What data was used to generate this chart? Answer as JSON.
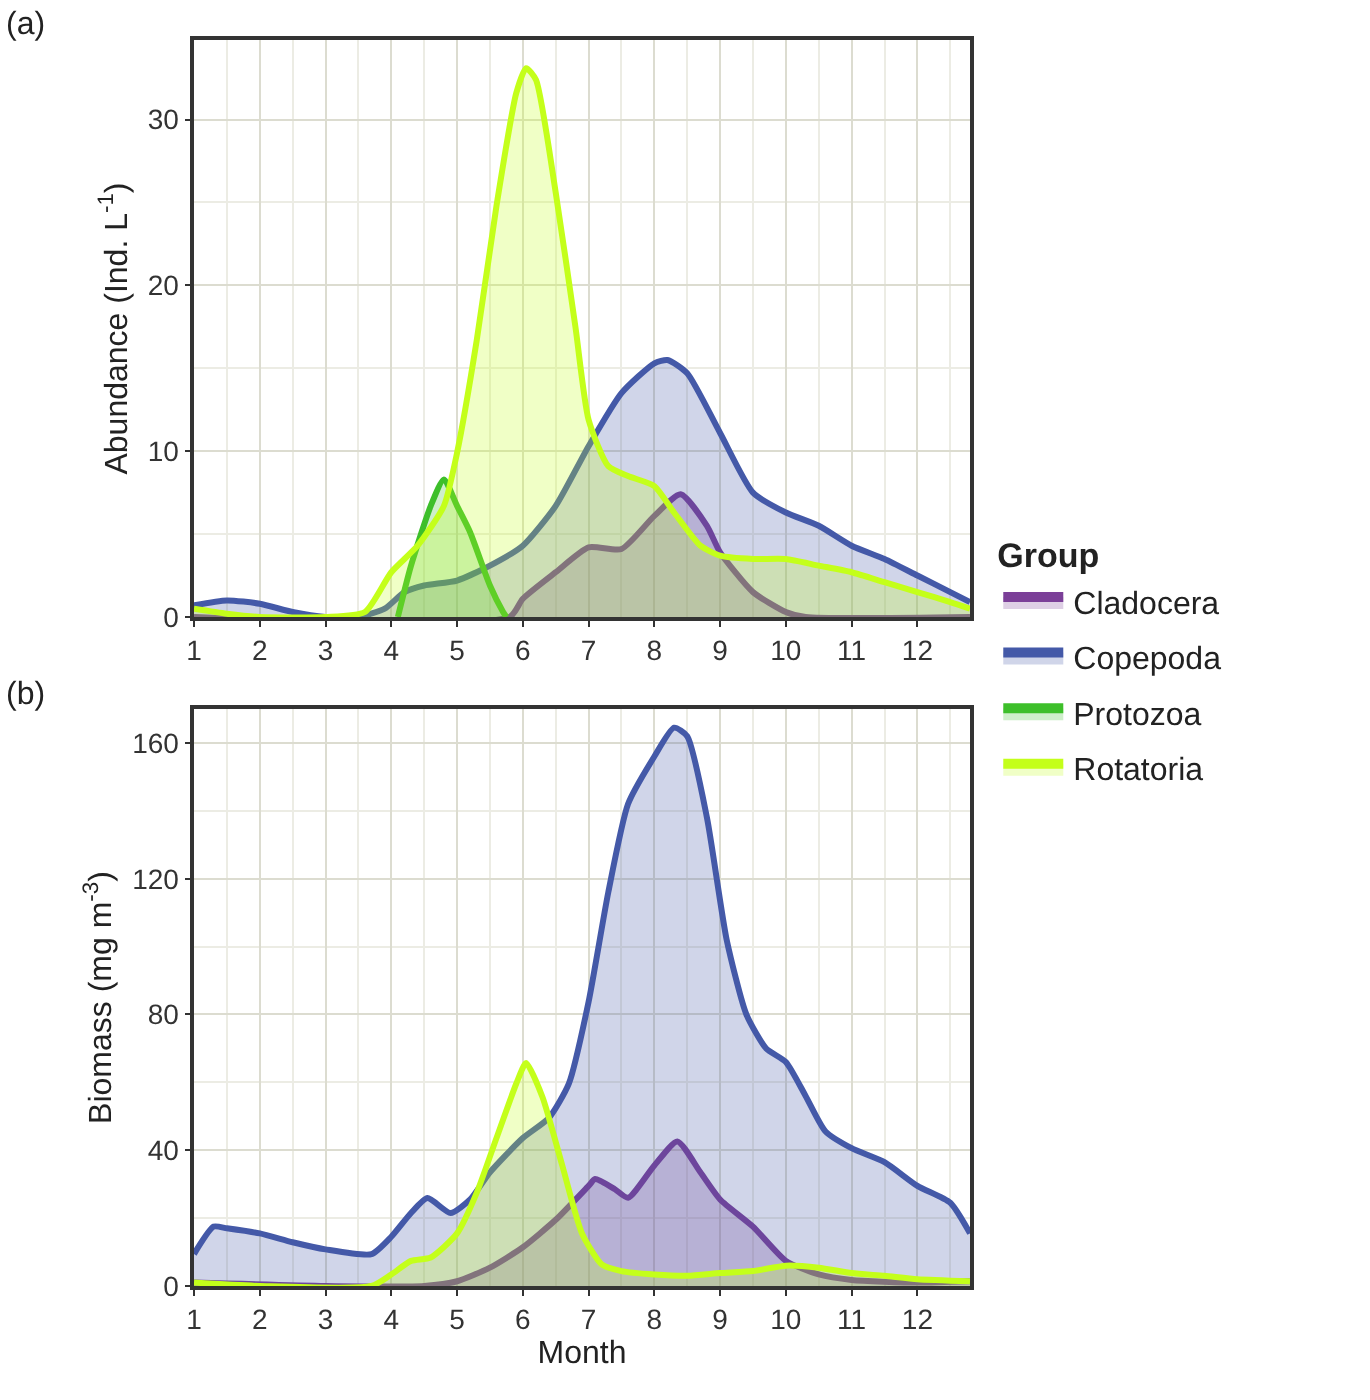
{
  "chart_data": [
    {
      "type": "area",
      "title": "(a)",
      "ylabel": "Abundance (Ind. L$^{-1}$)",
      "legend_title": "Group",
      "legend": "right",
      "grid": true,
      "line_style": "solid",
      "marker": "none",
      "xlim": [
        1,
        12.8
      ],
      "xticks": [
        1,
        2,
        3,
        4,
        5,
        6,
        7,
        8,
        9,
        10,
        11,
        12
      ],
      "ylim": [
        0,
        34.8
      ],
      "yticks": [
        0,
        10,
        20,
        30
      ],
      "series": [
        {
          "name": "Cladocera",
          "color": "#7b3f98",
          "x": [
            1,
            5.8,
            6,
            6.5,
            7,
            7.5,
            8,
            8.4,
            8.8,
            9,
            9.5,
            10,
            10.3,
            12.8
          ],
          "values": [
            0,
            0,
            1.1,
            2.7,
            4.2,
            4.1,
            6.1,
            7.4,
            5.5,
            3.9,
            1.5,
            0.3,
            0,
            0
          ]
        },
        {
          "name": "Copepoda",
          "color": "#4459a8",
          "x": [
            1,
            1.5,
            2,
            2.5,
            3,
            3.5,
            3.9,
            4.2,
            4.5,
            5,
            5.5,
            6,
            6.5,
            7,
            7.5,
            8,
            8.2,
            8.5,
            9,
            9.5,
            10,
            10.5,
            11,
            11.5,
            12,
            12.5,
            12.8
          ],
          "values": [
            0.7,
            1.0,
            0.8,
            0.3,
            0,
            0,
            0.5,
            1.5,
            1.9,
            2.2,
            3.1,
            4.3,
            6.7,
            10.3,
            13.5,
            15.3,
            15.5,
            14.7,
            11.1,
            7.5,
            6.3,
            5.5,
            4.3,
            3.5,
            2.5,
            1.5,
            0.9
          ]
        },
        {
          "name": "Protozoa",
          "color": "#3dbf2a",
          "x": [
            4.1,
            4.3,
            4.6,
            4.8,
            5,
            5.2,
            5.5,
            5.7,
            5.75
          ],
          "values": [
            0,
            3.1,
            6.7,
            8.3,
            6.7,
            5.1,
            1.9,
            0.3,
            0
          ]
        },
        {
          "name": "Rotatoria",
          "color": "#c4ff1a",
          "x": [
            1,
            1.5,
            2,
            3,
            3.6,
            4,
            4.4,
            4.8,
            5,
            5.3,
            5.6,
            5.9,
            6.05,
            6.2,
            6.5,
            6.8,
            7,
            7.3,
            7.6,
            8,
            8.3,
            8.7,
            9,
            9.5,
            10,
            10.5,
            11,
            11.5,
            12,
            12.5,
            12.8
          ],
          "values": [
            0.5,
            0.2,
            0,
            0,
            0.3,
            2.7,
            4.3,
            6.7,
            9.9,
            16.7,
            24.8,
            31.6,
            33.1,
            32.4,
            25.6,
            17.5,
            11.9,
            9.1,
            8.5,
            7.9,
            6.3,
            4.3,
            3.7,
            3.5,
            3.5,
            3.1,
            2.7,
            2.1,
            1.5,
            0.9,
            0.5
          ]
        }
      ]
    },
    {
      "type": "area",
      "title": "(b)",
      "xlabel": "Month",
      "ylabel": "Biomass (mg m$^{-3}$)",
      "grid": true,
      "line_style": "solid",
      "marker": "none",
      "xlim": [
        1,
        12.8
      ],
      "xticks": [
        1,
        2,
        3,
        4,
        5,
        6,
        7,
        8,
        9,
        10,
        11,
        12
      ],
      "ylim": [
        0,
        170
      ],
      "yticks": [
        0,
        40,
        80,
        120,
        160
      ],
      "series": [
        {
          "name": "Cladocera",
          "color": "#7b3f98",
          "x": [
            1,
            3,
            4.5,
            5,
            5.5,
            6,
            6.5,
            7,
            7.1,
            7.4,
            7.6,
            8,
            8.35,
            8.7,
            9,
            9.5,
            10,
            10.5,
            11,
            12,
            12.8
          ],
          "values": [
            1,
            0,
            0,
            1.4,
            5.4,
            11.4,
            19.5,
            29.5,
            31.5,
            28.5,
            26,
            35.5,
            42.6,
            33.5,
            25.5,
            17.5,
            7.4,
            3.4,
            1.8,
            1,
            1.4
          ]
        },
        {
          "name": "Copepoda",
          "color": "#4459a8",
          "x": [
            1,
            1.3,
            1.5,
            2,
            2.5,
            3,
            3.7,
            4,
            4.3,
            4.55,
            4.9,
            5.2,
            5.5,
            6,
            6.4,
            6.7,
            7,
            7.3,
            7.6,
            8,
            8.3,
            8.5,
            8.8,
            9.1,
            9.4,
            9.7,
            10,
            10.3,
            10.6,
            11,
            11.5,
            12,
            12.5,
            12.8
          ],
          "values": [
            9.4,
            17.5,
            17,
            15.5,
            12.9,
            10.8,
            9.4,
            14.5,
            21.5,
            25.9,
            21.5,
            25.5,
            33.5,
            43.6,
            49.6,
            59.6,
            83.7,
            116,
            142,
            156,
            164.5,
            162,
            138,
            102,
            80,
            70,
            66,
            56,
            45.6,
            40.6,
            36.5,
            29.5,
            24.5,
            15.5
          ]
        },
        {
          "name": "Rotatoria",
          "color": "#c4ff1a",
          "x": [
            1,
            2,
            3.7,
            4,
            4.3,
            4.6,
            5,
            5.3,
            5.6,
            5.9,
            6.05,
            6.3,
            6.6,
            6.9,
            7.2,
            7.5,
            8,
            8.5,
            9,
            9.5,
            10,
            10.5,
            11,
            11.5,
            12,
            12.8
          ],
          "values": [
            1,
            0,
            0,
            3.4,
            7.4,
            8.4,
            15.5,
            27.5,
            43.6,
            59.6,
            65.7,
            55.6,
            35.5,
            15.5,
            6.4,
            4.4,
            3.4,
            3.0,
            3.8,
            4.4,
            6.0,
            5.4,
            3.8,
            3.0,
            2.0,
            1.4
          ]
        }
      ]
    }
  ]
}
